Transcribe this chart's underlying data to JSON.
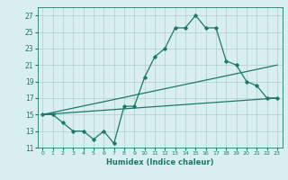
{
  "x": [
    0,
    1,
    2,
    3,
    4,
    5,
    6,
    7,
    8,
    9,
    10,
    11,
    12,
    13,
    14,
    15,
    16,
    17,
    18,
    19,
    20,
    21,
    22,
    23
  ],
  "y_main": [
    15,
    15,
    14,
    13,
    13,
    12,
    13,
    11.5,
    16,
    16,
    19.5,
    22,
    23,
    25.5,
    25.5,
    27,
    25.5,
    25.5,
    21.5,
    21,
    19,
    18.5,
    17,
    17
  ],
  "y_upper": [
    15,
    15.26,
    15.52,
    15.78,
    16.04,
    16.3,
    16.56,
    16.82,
    17.08,
    17.35,
    17.61,
    17.87,
    18.13,
    18.39,
    18.65,
    18.91,
    19.17,
    19.43,
    19.69,
    19.95,
    20.21,
    20.47,
    20.73,
    21.0
  ],
  "y_lower": [
    15,
    15.087,
    15.174,
    15.261,
    15.348,
    15.435,
    15.522,
    15.609,
    15.696,
    15.783,
    15.87,
    15.957,
    16.044,
    16.131,
    16.218,
    16.305,
    16.392,
    16.479,
    16.566,
    16.653,
    16.74,
    16.827,
    16.914,
    17.0
  ],
  "line_color": "#1a7a6a",
  "bg_color": "#d9eeee",
  "grid_color": "#b0cece",
  "xlabel": "Humidex (Indice chaleur)",
  "xlim": [
    -0.5,
    23.5
  ],
  "ylim": [
    11,
    28
  ],
  "yticks": [
    11,
    13,
    15,
    17,
    19,
    21,
    23,
    25,
    27
  ],
  "xticks": [
    0,
    1,
    2,
    3,
    4,
    5,
    6,
    7,
    8,
    9,
    10,
    11,
    12,
    13,
    14,
    15,
    16,
    17,
    18,
    19,
    20,
    21,
    22,
    23
  ]
}
